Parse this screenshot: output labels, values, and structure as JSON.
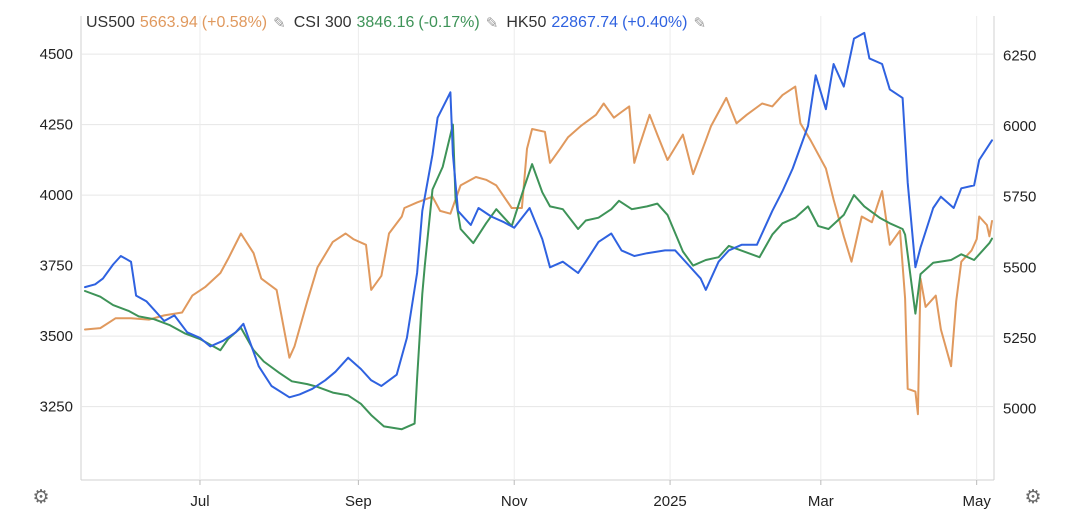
{
  "legend": {
    "items": [
      {
        "symbol": "US500",
        "value": "5663.94",
        "change": "(+0.58%)",
        "color": "#e0995e"
      },
      {
        "symbol": "CSI 300",
        "value": "3846.16",
        "change": "(-0.17%)",
        "color": "#3e9358"
      },
      {
        "symbol": "HK50",
        "value": "22867.74",
        "change": "(+0.40%)",
        "color": "#2f62e0"
      }
    ],
    "edit_icon": "pencil-icon"
  },
  "settings_icon": "gear-icon",
  "chart_data": {
    "type": "line",
    "left_axis": {
      "ticks": [
        3250,
        3500,
        3750,
        4000,
        4250,
        4500
      ],
      "range": [
        2990,
        4635
      ]
    },
    "right_axis": {
      "ticks": [
        5000,
        5250,
        5500,
        5750,
        6000,
        6250
      ],
      "range": [
        4747,
        6390
      ]
    },
    "x_axis": {
      "range": [
        "2024-05-17",
        "2025-05-07"
      ],
      "ticks": [
        {
          "label": "Jul",
          "date": "2024-07-01"
        },
        {
          "label": "Sep",
          "date": "2024-09-01"
        },
        {
          "label": "Nov",
          "date": "2024-11-01"
        },
        {
          "label": "2025",
          "date": "2025-01-01"
        },
        {
          "label": "Mar",
          "date": "2025-03-01"
        },
        {
          "label": "May",
          "date": "2025-05-01"
        }
      ]
    },
    "grid": true,
    "series": [
      {
        "name": "US500",
        "axis": "right",
        "color": "#e0995e",
        "points": [
          [
            "2024-05-17",
            5280
          ],
          [
            "2024-05-23",
            5285
          ],
          [
            "2024-05-29",
            5320
          ],
          [
            "2024-06-04",
            5320
          ],
          [
            "2024-06-11",
            5315
          ],
          [
            "2024-06-17",
            5330
          ],
          [
            "2024-06-24",
            5340
          ],
          [
            "2024-06-28",
            5400
          ],
          [
            "2024-07-03",
            5430
          ],
          [
            "2024-07-09",
            5480
          ],
          [
            "2024-07-12",
            5530
          ],
          [
            "2024-07-17",
            5620
          ],
          [
            "2024-07-22",
            5550
          ],
          [
            "2024-07-25",
            5460
          ],
          [
            "2024-07-31",
            5420
          ],
          [
            "2024-08-05",
            5180
          ],
          [
            "2024-08-07",
            5220
          ],
          [
            "2024-08-12",
            5380
          ],
          [
            "2024-08-16",
            5500
          ],
          [
            "2024-08-22",
            5590
          ],
          [
            "2024-08-27",
            5620
          ],
          [
            "2024-08-30",
            5600
          ],
          [
            "2024-09-04",
            5580
          ],
          [
            "2024-09-06",
            5420
          ],
          [
            "2024-09-10",
            5470
          ],
          [
            "2024-09-13",
            5620
          ],
          [
            "2024-09-18",
            5680
          ],
          [
            "2024-09-19",
            5710
          ],
          [
            "2024-09-24",
            5730
          ],
          [
            "2024-09-30",
            5750
          ],
          [
            "2024-10-03",
            5700
          ],
          [
            "2024-10-07",
            5690
          ],
          [
            "2024-10-11",
            5790
          ],
          [
            "2024-10-17",
            5820
          ],
          [
            "2024-10-21",
            5810
          ],
          [
            "2024-10-25",
            5790
          ],
          [
            "2024-10-31",
            5710
          ],
          [
            "2024-11-04",
            5710
          ],
          [
            "2024-11-06",
            5920
          ],
          [
            "2024-11-08",
            5990
          ],
          [
            "2024-11-13",
            5980
          ],
          [
            "2024-11-15",
            5870
          ],
          [
            "2024-11-19",
            5920
          ],
          [
            "2024-11-22",
            5960
          ],
          [
            "2024-11-27",
            6000
          ],
          [
            "2024-12-03",
            6040
          ],
          [
            "2024-12-06",
            6080
          ],
          [
            "2024-12-10",
            6030
          ],
          [
            "2024-12-13",
            6050
          ],
          [
            "2024-12-16",
            6070
          ],
          [
            "2024-12-18",
            5870
          ],
          [
            "2024-12-20",
            5930
          ],
          [
            "2024-12-24",
            6040
          ],
          [
            "2024-12-27",
            5970
          ],
          [
            "2024-12-31",
            5880
          ],
          [
            "2025-01-06",
            5970
          ],
          [
            "2025-01-10",
            5830
          ],
          [
            "2025-01-15",
            5950
          ],
          [
            "2025-01-17",
            6000
          ],
          [
            "2025-01-23",
            6100
          ],
          [
            "2025-01-27",
            6010
          ],
          [
            "2025-01-31",
            6040
          ],
          [
            "2025-02-06",
            6080
          ],
          [
            "2025-02-10",
            6070
          ],
          [
            "2025-02-14",
            6110
          ],
          [
            "2025-02-19",
            6140
          ],
          [
            "2025-02-21",
            6010
          ],
          [
            "2025-02-25",
            5950
          ],
          [
            "2025-03-03",
            5850
          ],
          [
            "2025-03-06",
            5740
          ],
          [
            "2025-03-10",
            5610
          ],
          [
            "2025-03-13",
            5520
          ],
          [
            "2025-03-17",
            5680
          ],
          [
            "2025-03-21",
            5660
          ],
          [
            "2025-03-25",
            5770
          ],
          [
            "2025-03-28",
            5580
          ],
          [
            "2025-04-01",
            5630
          ],
          [
            "2025-04-03",
            5390
          ],
          [
            "2025-04-04",
            5070
          ],
          [
            "2025-04-07",
            5060
          ],
          [
            "2025-04-08",
            4980
          ],
          [
            "2025-04-09",
            5460
          ],
          [
            "2025-04-11",
            5360
          ],
          [
            "2025-04-15",
            5400
          ],
          [
            "2025-04-17",
            5280
          ],
          [
            "2025-04-21",
            5150
          ],
          [
            "2025-04-23",
            5380
          ],
          [
            "2025-04-25",
            5520
          ],
          [
            "2025-04-29",
            5560
          ],
          [
            "2025-05-01",
            5600
          ],
          [
            "2025-05-02",
            5680
          ],
          [
            "2025-05-05",
            5650
          ],
          [
            "2025-05-06",
            5610
          ],
          [
            "2025-05-07",
            5664
          ]
        ]
      },
      {
        "name": "CSI 300",
        "axis": "left",
        "color": "#3e9358",
        "points": [
          [
            "2024-05-17",
            3660
          ],
          [
            "2024-05-23",
            3640
          ],
          [
            "2024-05-28",
            3610
          ],
          [
            "2024-06-03",
            3590
          ],
          [
            "2024-06-07",
            3570
          ],
          [
            "2024-06-13",
            3560
          ],
          [
            "2024-06-19",
            3540
          ],
          [
            "2024-06-25",
            3510
          ],
          [
            "2024-07-01",
            3490
          ],
          [
            "2024-07-05",
            3470
          ],
          [
            "2024-07-09",
            3450
          ],
          [
            "2024-07-12",
            3490
          ],
          [
            "2024-07-17",
            3530
          ],
          [
            "2024-07-22",
            3450
          ],
          [
            "2024-07-26",
            3410
          ],
          [
            "2024-08-01",
            3370
          ],
          [
            "2024-08-06",
            3340
          ],
          [
            "2024-08-12",
            3330
          ],
          [
            "2024-08-16",
            3320
          ],
          [
            "2024-08-22",
            3300
          ],
          [
            "2024-08-28",
            3290
          ],
          [
            "2024-09-02",
            3260
          ],
          [
            "2024-09-06",
            3220
          ],
          [
            "2024-09-11",
            3180
          ],
          [
            "2024-09-18",
            3170
          ],
          [
            "2024-09-23",
            3190
          ],
          [
            "2024-09-24",
            3350
          ],
          [
            "2024-09-26",
            3650
          ],
          [
            "2024-09-27",
            3750
          ],
          [
            "2024-09-30",
            4020
          ],
          [
            "2024-10-04",
            4100
          ],
          [
            "2024-10-08",
            4250
          ],
          [
            "2024-10-09",
            3990
          ],
          [
            "2024-10-11",
            3880
          ],
          [
            "2024-10-16",
            3830
          ],
          [
            "2024-10-21",
            3900
          ],
          [
            "2024-10-25",
            3950
          ],
          [
            "2024-10-31",
            3890
          ],
          [
            "2024-11-05",
            4030
          ],
          [
            "2024-11-08",
            4110
          ],
          [
            "2024-11-12",
            4010
          ],
          [
            "2024-11-15",
            3960
          ],
          [
            "2024-11-20",
            3950
          ],
          [
            "2024-11-26",
            3880
          ],
          [
            "2024-11-29",
            3910
          ],
          [
            "2024-12-04",
            3920
          ],
          [
            "2024-12-09",
            3950
          ],
          [
            "2024-12-12",
            3980
          ],
          [
            "2024-12-17",
            3950
          ],
          [
            "2024-12-23",
            3960
          ],
          [
            "2024-12-27",
            3970
          ],
          [
            "2024-12-31",
            3930
          ],
          [
            "2025-01-06",
            3800
          ],
          [
            "2025-01-10",
            3750
          ],
          [
            "2025-01-15",
            3770
          ],
          [
            "2025-01-20",
            3780
          ],
          [
            "2025-01-24",
            3820
          ],
          [
            "2025-02-05",
            3780
          ],
          [
            "2025-02-10",
            3860
          ],
          [
            "2025-02-14",
            3900
          ],
          [
            "2025-02-19",
            3920
          ],
          [
            "2025-02-24",
            3960
          ],
          [
            "2025-02-28",
            3890
          ],
          [
            "2025-03-04",
            3880
          ],
          [
            "2025-03-10",
            3930
          ],
          [
            "2025-03-14",
            4000
          ],
          [
            "2025-03-18",
            3960
          ],
          [
            "2025-03-24",
            3920
          ],
          [
            "2025-03-28",
            3900
          ],
          [
            "2025-04-02",
            3880
          ],
          [
            "2025-04-03",
            3860
          ],
          [
            "2025-04-07",
            3580
          ],
          [
            "2025-04-09",
            3720
          ],
          [
            "2025-04-14",
            3760
          ],
          [
            "2025-04-21",
            3770
          ],
          [
            "2025-04-25",
            3790
          ],
          [
            "2025-04-30",
            3770
          ],
          [
            "2025-05-06",
            3830
          ],
          [
            "2025-05-07",
            3846
          ]
        ]
      },
      {
        "name": "HK50",
        "axis": "right",
        "color": "#2f62e0",
        "points": [
          [
            "2024-05-17",
            5430
          ],
          [
            "2024-05-21",
            5440
          ],
          [
            "2024-05-24",
            5460
          ],
          [
            "2024-05-28",
            5510
          ],
          [
            "2024-05-31",
            5540
          ],
          [
            "2024-06-04",
            5520
          ],
          [
            "2024-06-06",
            5400
          ],
          [
            "2024-06-10",
            5380
          ],
          [
            "2024-06-13",
            5350
          ],
          [
            "2024-06-17",
            5310
          ],
          [
            "2024-06-21",
            5330
          ],
          [
            "2024-06-26",
            5270
          ],
          [
            "2024-07-01",
            5250
          ],
          [
            "2024-07-05",
            5220
          ],
          [
            "2024-07-10",
            5240
          ],
          [
            "2024-07-15",
            5270
          ],
          [
            "2024-07-18",
            5300
          ],
          [
            "2024-07-24",
            5150
          ],
          [
            "2024-07-29",
            5080
          ],
          [
            "2024-08-05",
            5040
          ],
          [
            "2024-08-09",
            5050
          ],
          [
            "2024-08-14",
            5070
          ],
          [
            "2024-08-19",
            5100
          ],
          [
            "2024-08-23",
            5130
          ],
          [
            "2024-08-28",
            5180
          ],
          [
            "2024-09-02",
            5140
          ],
          [
            "2024-09-06",
            5100
          ],
          [
            "2024-09-10",
            5080
          ],
          [
            "2024-09-16",
            5120
          ],
          [
            "2024-09-20",
            5250
          ],
          [
            "2024-09-24",
            5480
          ],
          [
            "2024-09-26",
            5700
          ],
          [
            "2024-09-30",
            5900
          ],
          [
            "2024-10-02",
            6030
          ],
          [
            "2024-10-07",
            6120
          ],
          [
            "2024-10-08",
            5900
          ],
          [
            "2024-10-10",
            5700
          ],
          [
            "2024-10-15",
            5650
          ],
          [
            "2024-10-18",
            5710
          ],
          [
            "2024-10-23",
            5680
          ],
          [
            "2024-10-28",
            5660
          ],
          [
            "2024-11-01",
            5640
          ],
          [
            "2024-11-07",
            5710
          ],
          [
            "2024-11-12",
            5600
          ],
          [
            "2024-11-15",
            5500
          ],
          [
            "2024-11-20",
            5520
          ],
          [
            "2024-11-26",
            5480
          ],
          [
            "2024-11-29",
            5520
          ],
          [
            "2024-12-04",
            5590
          ],
          [
            "2024-12-09",
            5620
          ],
          [
            "2024-12-13",
            5560
          ],
          [
            "2024-12-18",
            5540
          ],
          [
            "2024-12-23",
            5550
          ],
          [
            "2024-12-30",
            5560
          ],
          [
            "2025-01-03",
            5560
          ],
          [
            "2025-01-08",
            5510
          ],
          [
            "2025-01-13",
            5460
          ],
          [
            "2025-01-15",
            5420
          ],
          [
            "2025-01-20",
            5520
          ],
          [
            "2025-01-24",
            5560
          ],
          [
            "2025-01-29",
            5580
          ],
          [
            "2025-02-04",
            5580
          ],
          [
            "2025-02-10",
            5700
          ],
          [
            "2025-02-14",
            5770
          ],
          [
            "2025-02-18",
            5850
          ],
          [
            "2025-02-24",
            6000
          ],
          [
            "2025-02-27",
            6180
          ],
          [
            "2025-03-03",
            6060
          ],
          [
            "2025-03-06",
            6220
          ],
          [
            "2025-03-10",
            6140
          ],
          [
            "2025-03-14",
            6310
          ],
          [
            "2025-03-18",
            6330
          ],
          [
            "2025-03-20",
            6240
          ],
          [
            "2025-03-25",
            6220
          ],
          [
            "2025-03-28",
            6130
          ],
          [
            "2025-04-02",
            6100
          ],
          [
            "2025-04-04",
            5800
          ],
          [
            "2025-04-07",
            5500
          ],
          [
            "2025-04-09",
            5570
          ],
          [
            "2025-04-14",
            5710
          ],
          [
            "2025-04-17",
            5750
          ],
          [
            "2025-04-22",
            5710
          ],
          [
            "2025-04-25",
            5780
          ],
          [
            "2025-04-30",
            5790
          ],
          [
            "2025-05-02",
            5880
          ],
          [
            "2025-05-07",
            5950
          ]
        ]
      }
    ]
  }
}
